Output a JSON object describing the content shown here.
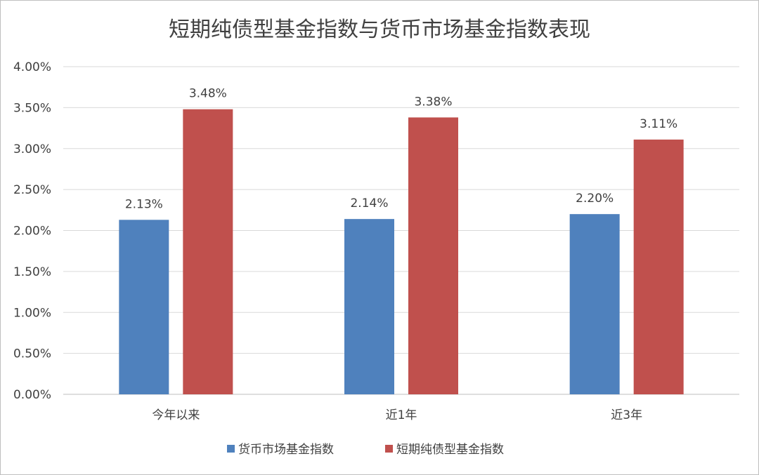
{
  "chart_data": {
    "type": "bar",
    "title": "短期纯债型基金指数与货币市场基金指数表现",
    "categories": [
      "今年以来",
      "近1年",
      "近3年"
    ],
    "series": [
      {
        "name": "货币市场基金指数",
        "values": [
          2.13,
          2.14,
          2.2
        ],
        "color": "#4f81bd",
        "labels": [
          "2.13%",
          "2.14%",
          "2.20%"
        ]
      },
      {
        "name": "短期纯债型基金指数",
        "values": [
          3.48,
          3.38,
          3.11
        ],
        "color": "#c0504d",
        "labels": [
          "3.48%",
          "3.38%",
          "3.11%"
        ]
      }
    ],
    "ylim": [
      0,
      4.0
    ],
    "yticks": [
      "0.00%",
      "0.50%",
      "1.00%",
      "1.50%",
      "2.00%",
      "2.50%",
      "3.00%",
      "3.50%",
      "4.00%"
    ],
    "ytick_values": [
      0,
      0.5,
      1.0,
      1.5,
      2.0,
      2.5,
      3.0,
      3.5,
      4.0
    ],
    "grid": true,
    "legend": "bottom"
  }
}
